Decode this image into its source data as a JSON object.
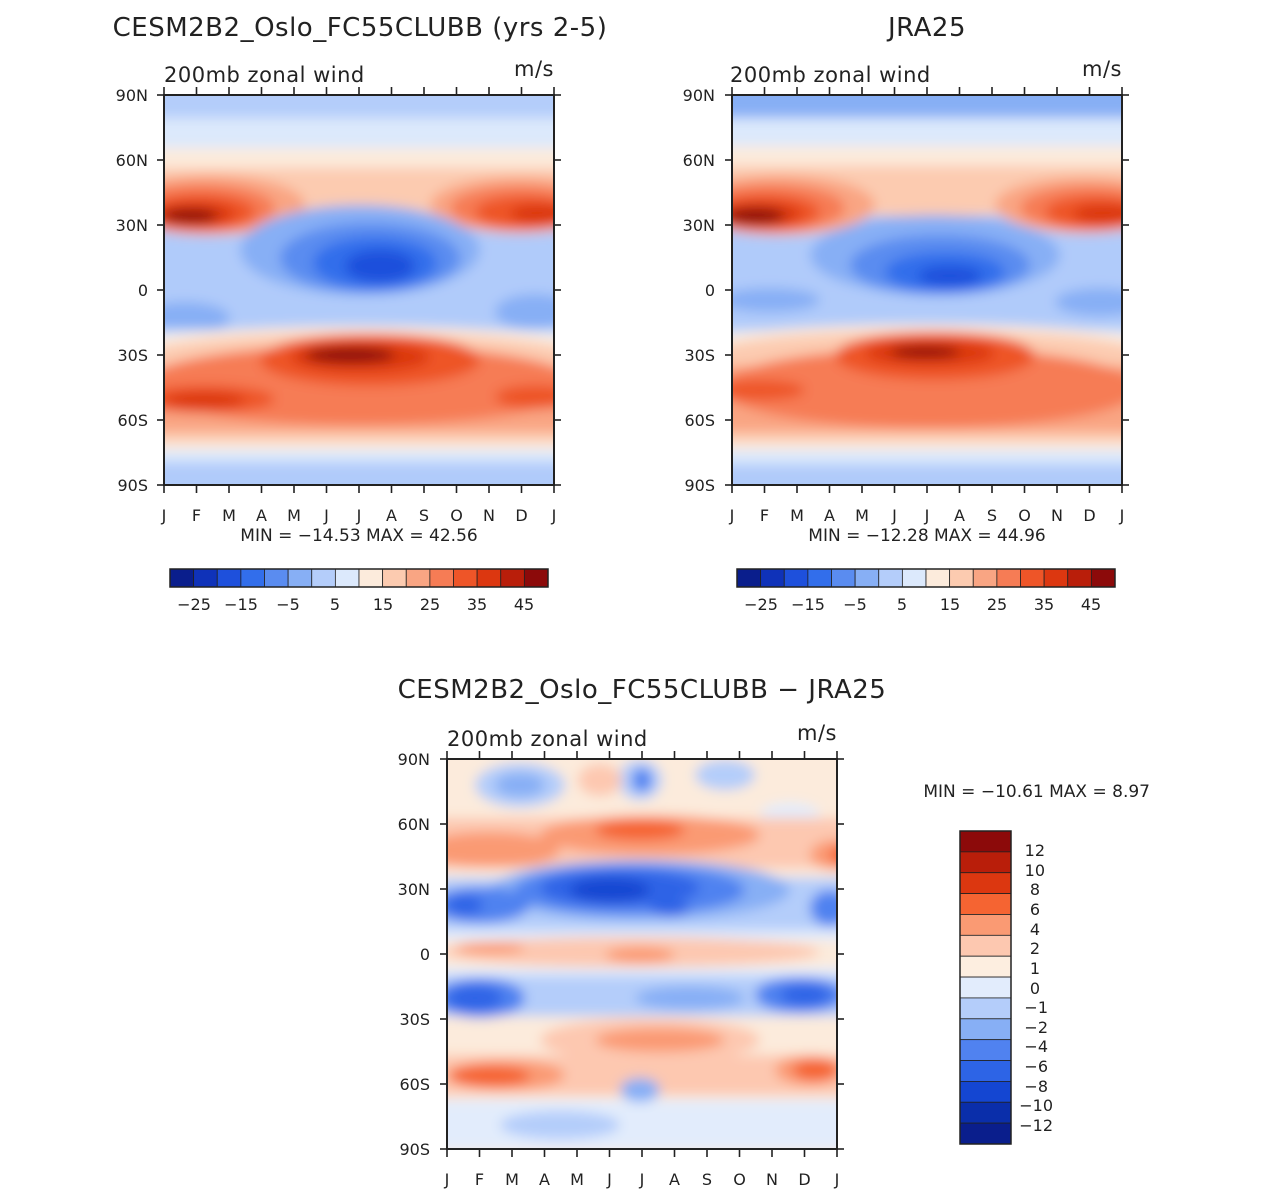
{
  "chart_data": [
    {
      "type": "heatmap",
      "title": "CESM2B2_Oslo_FC55CLUBB (yrs 2-5)",
      "subtitle_left": "200mb zonal wind",
      "subtitle_right": "m/s",
      "x_ticks": [
        "J",
        "F",
        "M",
        "A",
        "M",
        "J",
        "J",
        "A",
        "S",
        "O",
        "N",
        "D",
        "J"
      ],
      "y_ticks": [
        "90N",
        "60N",
        "30N",
        "0",
        "30S",
        "60S",
        "90S"
      ],
      "min_max_text": "MIN = −14.53  MAX =   42.56",
      "colorbar_labels": [
        "−25",
        "−15",
        "−5",
        "5",
        "15",
        "25",
        "35",
        "45"
      ],
      "colorbar_colors": [
        "#0a1e8c",
        "#0f32b9",
        "#1e50dc",
        "#326eeb",
        "#5a8cf0",
        "#87aff5",
        "#b4cdfa",
        "#dce9fc",
        "#fcebdc",
        "#fccbb0",
        "#f9a583",
        "#f67c55",
        "#ee5528",
        "#dc3710",
        "#b91e0a",
        "#8c0a0a"
      ],
      "min": -14.53,
      "max": 42.56
    },
    {
      "type": "heatmap",
      "title": "JRA25",
      "subtitle_left": "200mb zonal wind",
      "subtitle_right": "m/s",
      "x_ticks": [
        "J",
        "F",
        "M",
        "A",
        "M",
        "J",
        "J",
        "A",
        "S",
        "O",
        "N",
        "D",
        "J"
      ],
      "y_ticks": [
        "90N",
        "60N",
        "30N",
        "0",
        "30S",
        "60S",
        "90S"
      ],
      "min_max_text": "MIN = −12.28  MAX =   44.96",
      "colorbar_labels": [
        "−25",
        "−15",
        "−5",
        "5",
        "15",
        "25",
        "35",
        "45"
      ],
      "min": -12.28,
      "max": 44.96
    },
    {
      "type": "heatmap",
      "title": "CESM2B2_Oslo_FC55CLUBB − JRA25",
      "subtitle_left": "200mb zonal wind",
      "subtitle_right": "m/s",
      "x_ticks": [
        "J",
        "F",
        "M",
        "A",
        "M",
        "J",
        "J",
        "A",
        "S",
        "O",
        "N",
        "D",
        "J"
      ],
      "y_ticks": [
        "90N",
        "60N",
        "30N",
        "0",
        "30S",
        "60S",
        "90S"
      ],
      "min_max_text": "MIN = −10.61  MAX =     8.97",
      "colorbar_labels": [
        "12",
        "10",
        "8",
        "6",
        "4",
        "2",
        "1",
        "0",
        "−1",
        "−2",
        "−4",
        "−6",
        "−8",
        "−10",
        "−12"
      ],
      "colorbar_colors": [
        "#8c0a0a",
        "#b91e0a",
        "#dc3710",
        "#f56432",
        "#fa9a73",
        "#fdc8b0",
        "#fdeee0",
        "#e2ecfc",
        "#b4cdfa",
        "#87aff5",
        "#5082f0",
        "#2d64e6",
        "#1446d2",
        "#0a2eaa",
        "#0a1e8c"
      ],
      "min": -10.61,
      "max": 8.97
    }
  ]
}
